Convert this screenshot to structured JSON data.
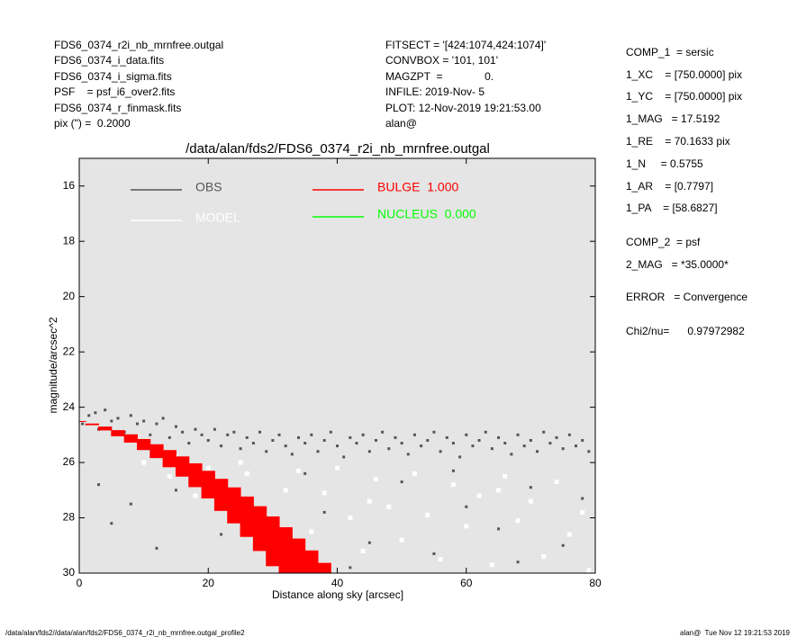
{
  "header": {
    "left": [
      "FDS6_0374_r2i_nb_mrnfree.outgal",
      "FDS6_0374_i_data.fits",
      "FDS6_0374_i_sigma.fits",
      "PSF    = psf_i6_over2.fits",
      "FDS6_0374_r_finmask.fits",
      "pix (\") =  0.2000"
    ],
    "middle": [
      "FITSECT = '[424:1074,424:1074]'",
      "CONVBOX = '101, 101'",
      "MAGZPT  =              0.",
      "INFILE: 2019-Nov- 5",
      "PLOT: 12-Nov-2019 19:21:53.00",
      "alan@"
    ],
    "right": [
      "COMP_1  = sersic",
      "1_XC    = [750.0000] pix",
      "1_YC    = [750.0000] pix",
      "1_MAG   = 17.5192",
      "1_RE    = 70.1633 pix",
      "1_N     = 0.5755",
      "1_AR    = [0.7797]",
      "1_PA    = [58.6827]",
      "COMP_2  = psf",
      "2_MAG   = *35.0000*",
      "ERROR   = Convergence",
      "Chi2/nu=      0.97972982"
    ]
  },
  "footer": {
    "left": "/data/alan/fds2//data/alan/fds2/FDS6_0374_r2i_nb_mrnfree.outgal_profile2",
    "right": "alan@  Tue Nov 12 19:21:53 2019"
  },
  "chart_data": {
    "type": "scatter",
    "title": "/data/alan/fds2/FDS6_0374_r2i_nb_mrnfree.outgal",
    "x_label": "Distance along sky [arcsec]",
    "y_label": "magnitude/arcsec^2",
    "xlim": [
      0,
      80
    ],
    "xticks": [
      0,
      20,
      40,
      60,
      80
    ],
    "ylim": [
      30,
      15
    ],
    "yticks": [
      16,
      18,
      20,
      22,
      24,
      26,
      28,
      30
    ],
    "background": "#e5e5e5",
    "series": [
      {
        "name": "OBS",
        "color": "#555555",
        "x": [
          0.5,
          1.5,
          2.5,
          3,
          4,
          5,
          6,
          7,
          8,
          9,
          10,
          11,
          12,
          13,
          14,
          15,
          16,
          17,
          18,
          19,
          20,
          21,
          22,
          23,
          24,
          25,
          26,
          27,
          28,
          29,
          30,
          31,
          32,
          33,
          34,
          35,
          36,
          37,
          38,
          39,
          40,
          41,
          42,
          43,
          44,
          45,
          46,
          47,
          48,
          49,
          50,
          51,
          52,
          53,
          54,
          55,
          56,
          57,
          58,
          59,
          60,
          61,
          62,
          63,
          64,
          65,
          66,
          67,
          68,
          69,
          70,
          71,
          72,
          73,
          74,
          75,
          76,
          77,
          78,
          79,
          3,
          5,
          8,
          12,
          15,
          22,
          30,
          38,
          45,
          50,
          55,
          60,
          65,
          70,
          75,
          78,
          42,
          35,
          58,
          68
        ],
        "values": [
          24.6,
          24.3,
          24.2,
          24.8,
          24.1,
          24.5,
          24.4,
          24.9,
          24.3,
          24.6,
          24.5,
          25.0,
          24.6,
          24.4,
          25.1,
          24.7,
          24.9,
          25.3,
          24.8,
          25.0,
          25.2,
          24.8,
          25.4,
          25.0,
          24.9,
          25.5,
          25.1,
          25.3,
          24.9,
          25.6,
          25.2,
          25.0,
          25.4,
          25.7,
          25.1,
          25.3,
          25.0,
          25.6,
          25.2,
          24.9,
          25.4,
          25.8,
          25.1,
          25.3,
          25.0,
          25.6,
          25.2,
          24.9,
          25.5,
          25.1,
          25.3,
          25.7,
          25.0,
          25.4,
          25.2,
          24.9,
          25.6,
          25.1,
          25.3,
          25.8,
          25.0,
          25.4,
          25.2,
          24.9,
          25.5,
          25.1,
          25.3,
          25.7,
          25.0,
          25.4,
          25.2,
          25.6,
          24.9,
          25.3,
          25.1,
          25.5,
          25.0,
          25.4,
          25.2,
          25.6,
          26.8,
          28.2,
          27.5,
          29.1,
          27.0,
          28.6,
          29.5,
          27.8,
          28.9,
          26.7,
          29.3,
          27.6,
          28.4,
          26.9,
          29.0,
          27.3,
          29.8,
          26.4,
          26.3,
          29.6
        ]
      },
      {
        "name": "MODEL",
        "color": "#ffffff",
        "x": [
          10,
          14,
          18,
          20,
          24,
          26,
          28,
          32,
          34,
          36,
          38,
          40,
          42,
          44,
          46,
          48,
          50,
          52,
          54,
          56,
          58,
          60,
          62,
          64,
          66,
          68,
          70,
          72,
          74,
          76,
          78,
          79,
          15,
          25,
          45,
          65
        ],
        "values": [
          26.0,
          26.5,
          27.2,
          26.2,
          27.5,
          26.4,
          28.0,
          27.0,
          26.3,
          28.5,
          27.1,
          26.2,
          28.0,
          29.2,
          26.6,
          27.6,
          28.8,
          26.4,
          27.9,
          29.5,
          26.8,
          28.3,
          27.2,
          29.7,
          26.5,
          28.1,
          27.4,
          29.4,
          26.7,
          28.6,
          27.8,
          29.9,
          25.8,
          26.0,
          27.4,
          27.0
        ]
      },
      {
        "name": "BULGE  1.000",
        "color": "#ff0000",
        "x": [
          0,
          2,
          4,
          6,
          8,
          10,
          12,
          14,
          16,
          18,
          20,
          22,
          24,
          26,
          28,
          30,
          32,
          34,
          36,
          38,
          40
        ],
        "values": [
          24.5,
          24.59,
          24.7,
          24.83,
          24.98,
          25.15,
          25.34,
          25.55,
          25.78,
          26.03,
          26.3,
          26.59,
          26.9,
          27.23,
          27.58,
          27.95,
          28.34,
          28.75,
          29.18,
          29.63,
          30.1
        ],
        "values_low": [
          24.5,
          24.65,
          24.84,
          25.05,
          25.28,
          25.55,
          25.84,
          26.17,
          26.51,
          26.89,
          27.3,
          27.75,
          28.2,
          28.69,
          29.2,
          29.75,
          30.32,
          30.93,
          31.56,
          32.21,
          32.9
        ]
      },
      {
        "name": "NUCLEUS  0.000",
        "color": "#00ff00"
      }
    ]
  }
}
